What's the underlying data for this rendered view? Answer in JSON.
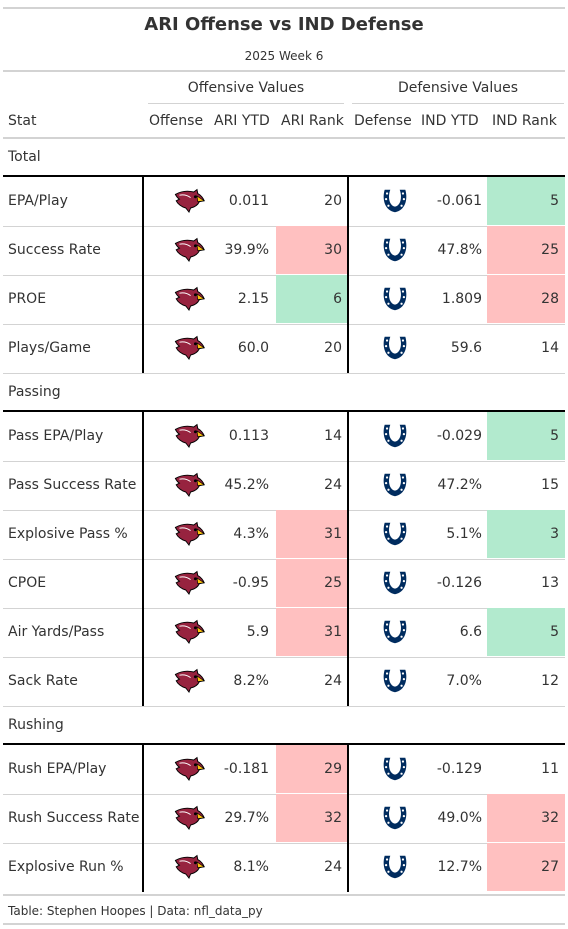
{
  "title": "ARI Offense vs IND Defense",
  "subtitle": "2025 Week 6",
  "spanners": {
    "offense": "Offensive Values",
    "defense": "Defensive Values"
  },
  "columns": {
    "stat": "Stat",
    "offense": "Offense",
    "ari_ytd": "ARI YTD",
    "ari_rank": "ARI Rank",
    "defense": "Defense",
    "ind_ytd": "IND YTD",
    "ind_rank": "IND Rank"
  },
  "colors": {
    "good": "#b2eace",
    "bad": "#ffc0c0",
    "colts_blue": "#002c5f",
    "cardinals_red": "#97233f"
  },
  "groups": [
    {
      "label": "Total",
      "rows": [
        {
          "stat": "EPA/Play",
          "ari_ytd": "0.011",
          "ari_rank": "20",
          "ari_color": "",
          "ind_ytd": "-0.061",
          "ind_rank": "5",
          "ind_color": "good"
        },
        {
          "stat": "Success Rate",
          "ari_ytd": "39.9%",
          "ari_rank": "30",
          "ari_color": "bad",
          "ind_ytd": "47.8%",
          "ind_rank": "25",
          "ind_color": "bad"
        },
        {
          "stat": "PROE",
          "ari_ytd": "2.15",
          "ari_rank": "6",
          "ari_color": "good",
          "ind_ytd": "1.809",
          "ind_rank": "28",
          "ind_color": "bad"
        },
        {
          "stat": "Plays/Game",
          "ari_ytd": "60.0",
          "ari_rank": "20",
          "ari_color": "",
          "ind_ytd": "59.6",
          "ind_rank": "14",
          "ind_color": ""
        }
      ]
    },
    {
      "label": "Passing",
      "rows": [
        {
          "stat": "Pass EPA/Play",
          "ari_ytd": "0.113",
          "ari_rank": "14",
          "ari_color": "",
          "ind_ytd": "-0.029",
          "ind_rank": "5",
          "ind_color": "good"
        },
        {
          "stat": "Pass Success Rate",
          "ari_ytd": "45.2%",
          "ari_rank": "24",
          "ari_color": "",
          "ind_ytd": "47.2%",
          "ind_rank": "15",
          "ind_color": ""
        },
        {
          "stat": "Explosive Pass %",
          "ari_ytd": "4.3%",
          "ari_rank": "31",
          "ari_color": "bad",
          "ind_ytd": "5.1%",
          "ind_rank": "3",
          "ind_color": "good"
        },
        {
          "stat": "CPOE",
          "ari_ytd": "-0.95",
          "ari_rank": "25",
          "ari_color": "bad",
          "ind_ytd": "-0.126",
          "ind_rank": "13",
          "ind_color": ""
        },
        {
          "stat": "Air Yards/Pass",
          "ari_ytd": "5.9",
          "ari_rank": "31",
          "ari_color": "bad",
          "ind_ytd": "6.6",
          "ind_rank": "5",
          "ind_color": "good"
        },
        {
          "stat": "Sack Rate",
          "ari_ytd": "8.2%",
          "ari_rank": "24",
          "ari_color": "",
          "ind_ytd": "7.0%",
          "ind_rank": "12",
          "ind_color": ""
        }
      ]
    },
    {
      "label": "Rushing",
      "rows": [
        {
          "stat": "Rush EPA/Play",
          "ari_ytd": "-0.181",
          "ari_rank": "29",
          "ari_color": "bad",
          "ind_ytd": "-0.129",
          "ind_rank": "11",
          "ind_color": ""
        },
        {
          "stat": "Rush Success Rate",
          "ari_ytd": "29.7%",
          "ari_rank": "32",
          "ari_color": "bad",
          "ind_ytd": "49.0%",
          "ind_rank": "32",
          "ind_color": "bad"
        },
        {
          "stat": "Explosive Run %",
          "ari_ytd": "8.1%",
          "ari_rank": "24",
          "ari_color": "",
          "ind_ytd": "12.7%",
          "ind_rank": "27",
          "ind_color": "bad"
        }
      ]
    }
  ],
  "footer": "Table: Stephen Hoopes | Data: nfl_data_py",
  "icons": {
    "offense_logo": "cardinals-logo-icon",
    "defense_logo": "colts-horseshoe-icon"
  }
}
